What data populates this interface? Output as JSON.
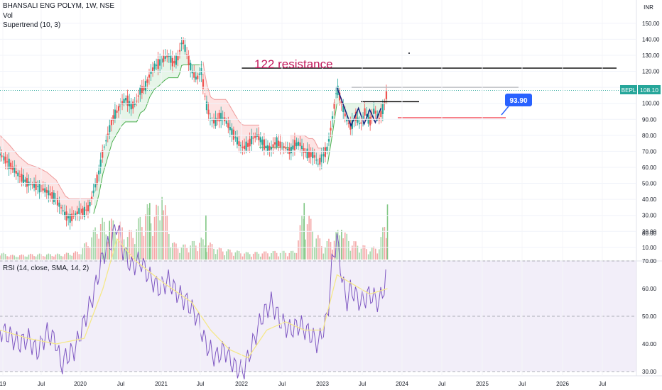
{
  "header": {
    "symbol_line": "BHANSALI ENG POLYM, 1W, NSE",
    "vol_label": "Vol",
    "supertrend_label": "Supertrend (10, 3)",
    "currency": "INR"
  },
  "rsi_label": "RSI (14, close, SMA, 14, 2)",
  "price_tag": {
    "symbol": "BEPL",
    "value": "108.10"
  },
  "annotations": {
    "resistance_text": "122 resistance",
    "target_callout": "93.90"
  },
  "colors": {
    "up": "#26a69a",
    "down": "#ef5350",
    "supertrend_up_fill": "#e3f4e6",
    "supertrend_down_fill": "#fde0e0",
    "supertrend_up_line": "#4caf50",
    "supertrend_down_line": "#ef9a9a",
    "rsi_line": "#7e57c2",
    "rsi_ma": "#f5e88a",
    "rsi_band": "#ede7f6",
    "annotation_text": "#c2185b",
    "callout": "#2962ff",
    "drawing_black": "#000000",
    "drawing_red": "#f23645",
    "drawing_navy": "#1a237e"
  },
  "chart_data": {
    "type": "candlestick",
    "price_axis": {
      "ticks": [
        10,
        20,
        30,
        40,
        50,
        60,
        70,
        80,
        90,
        100,
        110,
        120,
        130,
        140,
        150
      ],
      "ylim": [
        3,
        155
      ]
    },
    "rsi_axis": {
      "ticks": [
        30,
        40,
        50,
        60,
        70,
        80
      ],
      "bands": [
        30,
        50,
        70
      ]
    },
    "x_ticks": [
      "19",
      "Jul",
      "2020",
      "Jul",
      "2021",
      "Jul",
      "2022",
      "Jul",
      "2023",
      "Jul",
      "2024",
      "Jul",
      "2025",
      "Jul",
      "2026",
      "Jul"
    ],
    "price_path": [
      [
        2019.85,
        68
      ],
      [
        2019.95,
        62
      ],
      [
        2020.05,
        55
      ],
      [
        2020.15,
        50
      ],
      [
        2020.25,
        48
      ],
      [
        2020.35,
        45
      ],
      [
        2020.45,
        40
      ],
      [
        2020.5,
        35
      ],
      [
        2020.55,
        30
      ],
      [
        2020.6,
        28
      ],
      [
        2020.65,
        30
      ],
      [
        2020.7,
        33
      ],
      [
        2020.75,
        32
      ],
      [
        2020.8,
        35
      ],
      [
        2020.85,
        45
      ],
      [
        2020.9,
        55
      ],
      [
        2020.95,
        70
      ],
      [
        2021.0,
        80
      ],
      [
        2021.05,
        90
      ],
      [
        2021.1,
        95
      ],
      [
        2021.15,
        100
      ],
      [
        2021.2,
        103
      ],
      [
        2021.25,
        98
      ],
      [
        2021.3,
        100
      ],
      [
        2021.35,
        108
      ],
      [
        2021.4,
        110
      ],
      [
        2021.45,
        118
      ],
      [
        2021.5,
        123
      ],
      [
        2021.55,
        125
      ],
      [
        2021.6,
        128
      ],
      [
        2021.65,
        130
      ],
      [
        2021.7,
        125
      ],
      [
        2021.75,
        128
      ],
      [
        2021.8,
        140
      ],
      [
        2021.85,
        130
      ],
      [
        2021.9,
        120
      ],
      [
        2021.95,
        115
      ],
      [
        2022.0,
        120
      ],
      [
        2022.05,
        100
      ],
      [
        2022.1,
        90
      ],
      [
        2022.15,
        88
      ],
      [
        2022.2,
        92
      ],
      [
        2022.25,
        90
      ],
      [
        2022.3,
        85
      ],
      [
        2022.35,
        80
      ],
      [
        2022.4,
        75
      ],
      [
        2022.45,
        72
      ],
      [
        2022.5,
        74
      ],
      [
        2022.55,
        78
      ],
      [
        2022.6,
        80
      ],
      [
        2022.65,
        76
      ],
      [
        2022.7,
        72
      ],
      [
        2022.75,
        72
      ],
      [
        2022.8,
        76
      ],
      [
        2022.85,
        74
      ],
      [
        2022.9,
        72
      ],
      [
        2022.95,
        70
      ],
      [
        2023.0,
        74
      ],
      [
        2023.05,
        75
      ],
      [
        2023.1,
        70
      ],
      [
        2023.15,
        68
      ],
      [
        2023.2,
        68
      ],
      [
        2023.25,
        62
      ],
      [
        2023.3,
        67
      ],
      [
        2023.35,
        72
      ],
      [
        2023.4,
        90
      ],
      [
        2023.45,
        110
      ],
      [
        2023.5,
        100
      ],
      [
        2023.55,
        90
      ],
      [
        2023.6,
        85
      ],
      [
        2023.65,
        92
      ],
      [
        2023.7,
        86
      ],
      [
        2023.75,
        95
      ],
      [
        2023.8,
        88
      ],
      [
        2023.85,
        96
      ],
      [
        2023.9,
        90
      ],
      [
        2023.95,
        98
      ],
      [
        2023.99,
        108.1
      ]
    ],
    "volume": [
      [
        2019.85,
        5
      ],
      [
        2020.0,
        3
      ],
      [
        2020.2,
        4
      ],
      [
        2020.5,
        4
      ],
      [
        2020.7,
        6
      ],
      [
        2020.85,
        20
      ],
      [
        2020.9,
        30
      ],
      [
        2021.0,
        26
      ],
      [
        2021.1,
        30
      ],
      [
        2021.2,
        18
      ],
      [
        2021.3,
        24
      ],
      [
        2021.4,
        38
      ],
      [
        2021.5,
        36
      ],
      [
        2021.6,
        42
      ],
      [
        2021.7,
        12
      ],
      [
        2021.8,
        10
      ],
      [
        2022.0,
        15
      ],
      [
        2022.2,
        8
      ],
      [
        2022.5,
        5
      ],
      [
        2022.8,
        6
      ],
      [
        2023.0,
        6
      ],
      [
        2023.1,
        38
      ],
      [
        2023.3,
        10
      ],
      [
        2023.45,
        20
      ],
      [
        2023.5,
        22
      ],
      [
        2023.6,
        14
      ],
      [
        2023.8,
        8
      ],
      [
        2023.9,
        10
      ],
      [
        2023.99,
        37
      ]
    ],
    "rsi": [
      [
        2019.85,
        45
      ],
      [
        2019.95,
        43
      ],
      [
        2020.05,
        40
      ],
      [
        2020.15,
        42
      ],
      [
        2020.25,
        37
      ],
      [
        2020.35,
        44
      ],
      [
        2020.45,
        41
      ],
      [
        2020.5,
        32
      ],
      [
        2020.55,
        35
      ],
      [
        2020.65,
        38
      ],
      [
        2020.75,
        48
      ],
      [
        2020.85,
        58
      ],
      [
        2020.95,
        72
      ],
      [
        2021.05,
        78
      ],
      [
        2021.1,
        84
      ],
      [
        2021.15,
        75
      ],
      [
        2021.25,
        68
      ],
      [
        2021.35,
        70
      ],
      [
        2021.45,
        64
      ],
      [
        2021.55,
        60
      ],
      [
        2021.65,
        63
      ],
      [
        2021.75,
        58
      ],
      [
        2021.85,
        55
      ],
      [
        2021.95,
        50
      ],
      [
        2022.05,
        40
      ],
      [
        2022.15,
        35
      ],
      [
        2022.25,
        38
      ],
      [
        2022.35,
        32
      ],
      [
        2022.45,
        30
      ],
      [
        2022.55,
        40
      ],
      [
        2022.65,
        50
      ],
      [
        2022.75,
        55
      ],
      [
        2022.85,
        48
      ],
      [
        2022.95,
        45
      ],
      [
        2023.05,
        47
      ],
      [
        2023.15,
        44
      ],
      [
        2023.25,
        40
      ],
      [
        2023.35,
        50
      ],
      [
        2023.4,
        70
      ],
      [
        2023.45,
        78
      ],
      [
        2023.5,
        65
      ],
      [
        2023.55,
        55
      ],
      [
        2023.6,
        60
      ],
      [
        2023.7,
        55
      ],
      [
        2023.8,
        58
      ],
      [
        2023.9,
        55
      ],
      [
        2023.95,
        60
      ],
      [
        2023.99,
        67
      ]
    ],
    "rsi_ma": [
      [
        2019.85,
        45
      ],
      [
        2020.15,
        42
      ],
      [
        2020.45,
        40
      ],
      [
        2020.75,
        42
      ],
      [
        2020.95,
        60
      ],
      [
        2021.1,
        78
      ],
      [
        2021.3,
        70
      ],
      [
        2021.6,
        62
      ],
      [
        2021.9,
        55
      ],
      [
        2022.1,
        45
      ],
      [
        2022.3,
        38
      ],
      [
        2022.5,
        35
      ],
      [
        2022.7,
        45
      ],
      [
        2022.9,
        48
      ],
      [
        2023.1,
        45
      ],
      [
        2023.3,
        45
      ],
      [
        2023.45,
        65
      ],
      [
        2023.6,
        62
      ],
      [
        2023.8,
        58
      ],
      [
        2023.99,
        60
      ]
    ],
    "resistance_level": 122,
    "levels": [
      110,
      101,
      91
    ]
  }
}
